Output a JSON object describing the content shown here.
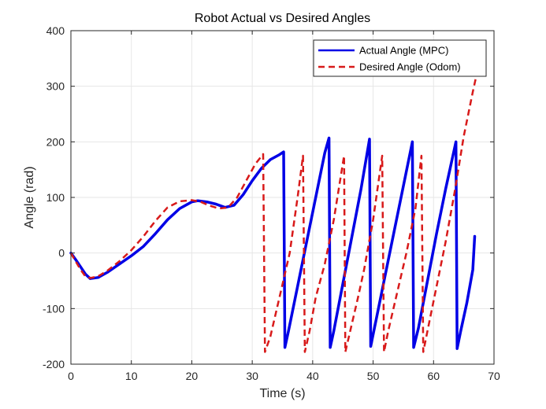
{
  "chart_data": {
    "type": "line",
    "title": "Robot Actual vs Desired Angles",
    "xlabel": "Time (s)",
    "ylabel": "Angle (rad)",
    "xlim": [
      0,
      70
    ],
    "ylim": [
      -200,
      400
    ],
    "xticks": [
      "0",
      "10",
      "20",
      "30",
      "40",
      "50",
      "60",
      "70"
    ],
    "yticks": [
      "400",
      "300",
      "200",
      "100",
      "0",
      "-100",
      "-200"
    ],
    "grid": true,
    "legend_position": "top-right",
    "series": [
      {
        "name": "Actual Angle (MPC)",
        "color": "#0000e6",
        "style": "solid",
        "x": [
          0,
          0.8,
          1.6,
          2.4,
          3.2,
          4.5,
          6,
          8,
          10,
          12,
          14,
          16,
          18,
          20,
          21,
          22.5,
          24,
          25.5,
          27,
          28.5,
          30,
          31.5,
          33,
          34.5,
          35.2,
          35.4,
          36,
          37.5,
          39,
          40.5,
          42,
          42.7,
          42.9,
          43.5,
          45,
          46.5,
          48,
          49.4,
          49.6,
          50.5,
          52,
          53.5,
          55,
          56.5,
          56.7,
          57.5,
          59,
          60.5,
          62,
          63.7,
          63.9,
          64.5,
          65.5,
          66.5,
          66.8
        ],
        "y": [
          0,
          -12,
          -25,
          -38,
          -46,
          -44,
          -35,
          -20,
          -5,
          12,
          35,
          60,
          80,
          92,
          94,
          92,
          88,
          82,
          86,
          105,
          130,
          152,
          168,
          177,
          182,
          -170,
          -140,
          -60,
          20,
          100,
          180,
          207,
          -170,
          -140,
          -55,
          30,
          115,
          205,
          -168,
          -120,
          -40,
          40,
          120,
          200,
          -170,
          -135,
          -50,
          35,
          115,
          200,
          -172,
          -140,
          -90,
          -30,
          30
        ]
      },
      {
        "name": "Desired Angle (Odom)",
        "color": "#d81a1a",
        "style": "dashed",
        "x": [
          0,
          0.8,
          1.6,
          2.4,
          3.2,
          4.5,
          6,
          8,
          10,
          12,
          14,
          16,
          18,
          20,
          21.5,
          23,
          24.5,
          26,
          27.5,
          29,
          30.5,
          31.8,
          32.1,
          33,
          34.5,
          36.2,
          37.5,
          38.4,
          38.7,
          39.5,
          40.5,
          42,
          43.5,
          45.2,
          45.4,
          46,
          47.5,
          48.5,
          50,
          51.5,
          51.8,
          52.5,
          54,
          55.5,
          57,
          58,
          58.3,
          59,
          60.5,
          62,
          63.5,
          65,
          66.5,
          67.3
        ],
        "y": [
          0,
          -15,
          -30,
          -42,
          -45,
          -42,
          -32,
          -15,
          5,
          30,
          58,
          82,
          93,
          95,
          92,
          85,
          80,
          82,
          100,
          130,
          160,
          178,
          -178,
          -150,
          -80,
          0,
          100,
          175,
          -178,
          -140,
          -80,
          -20,
          60,
          175,
          -178,
          -150,
          -80,
          -30,
          60,
          175,
          -178,
          -140,
          -70,
          0,
          80,
          175,
          -178,
          -140,
          -60,
          20,
          110,
          210,
          290,
          330
        ]
      }
    ]
  }
}
